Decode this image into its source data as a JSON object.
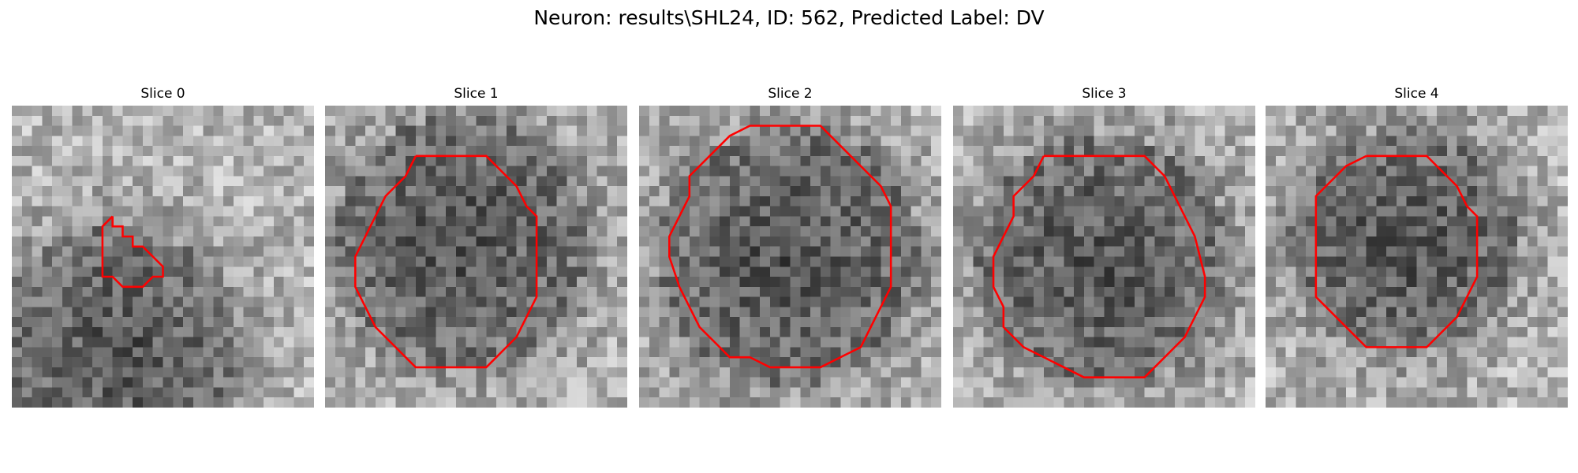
{
  "figure": {
    "title": "Neuron: results\\SHL24, ID: 562, Predicted Label: DV"
  },
  "panels": [
    {
      "title": "Slice 0",
      "seed": 11,
      "contour": [
        [
          10,
          11
        ],
        [
          10,
          12
        ],
        [
          11,
          12
        ],
        [
          11,
          13
        ],
        [
          12,
          13
        ],
        [
          12,
          14
        ],
        [
          13,
          14
        ],
        [
          14,
          15
        ],
        [
          15,
          16
        ],
        [
          15,
          17
        ],
        [
          14,
          17
        ],
        [
          13,
          18
        ],
        [
          11,
          18
        ],
        [
          10,
          17
        ],
        [
          9,
          17
        ],
        [
          9,
          12
        ],
        [
          10,
          11
        ]
      ],
      "dark_cx": 0.35,
      "dark_cy": 0.8,
      "dark_r": 0.4
    },
    {
      "title": "Slice 1",
      "seed": 23,
      "contour": [
        [
          9,
          5
        ],
        [
          16,
          5
        ],
        [
          17,
          6
        ],
        [
          18,
          7
        ],
        [
          19,
          8
        ],
        [
          20,
          10
        ],
        [
          21,
          11
        ],
        [
          21,
          19
        ],
        [
          20,
          21
        ],
        [
          19,
          23
        ],
        [
          18,
          24
        ],
        [
          17,
          25
        ],
        [
          16,
          26
        ],
        [
          9,
          26
        ],
        [
          8,
          25
        ],
        [
          7,
          24
        ],
        [
          6,
          23
        ],
        [
          5,
          22
        ],
        [
          4,
          20
        ],
        [
          3,
          18
        ],
        [
          3,
          15
        ],
        [
          4,
          13
        ],
        [
          5,
          11
        ],
        [
          6,
          9
        ],
        [
          7,
          8
        ],
        [
          8,
          7
        ],
        [
          9,
          5
        ]
      ],
      "dark_cx": 0.45,
      "dark_cy": 0.45,
      "dark_r": 0.42
    },
    {
      "title": "Slice 2",
      "seed": 37,
      "contour": [
        [
          13,
          2
        ],
        [
          18,
          2
        ],
        [
          20,
          4
        ],
        [
          22,
          6
        ],
        [
          24,
          8
        ],
        [
          25,
          10
        ],
        [
          25,
          18
        ],
        [
          24,
          20
        ],
        [
          23,
          22
        ],
        [
          22,
          24
        ],
        [
          20,
          25
        ],
        [
          18,
          26
        ],
        [
          13,
          26
        ],
        [
          11,
          25
        ],
        [
          9,
          25
        ],
        [
          8,
          24
        ],
        [
          6,
          22
        ],
        [
          5,
          20
        ],
        [
          4,
          18
        ],
        [
          3,
          15
        ],
        [
          3,
          13
        ],
        [
          4,
          11
        ],
        [
          5,
          9
        ],
        [
          5,
          7
        ],
        [
          7,
          5
        ],
        [
          9,
          3
        ],
        [
          11,
          2
        ],
        [
          13,
          2
        ]
      ],
      "dark_cx": 0.5,
      "dark_cy": 0.5,
      "dark_r": 0.44
    },
    {
      "title": "Slice 3",
      "seed": 51,
      "contour": [
        [
          9,
          5
        ],
        [
          19,
          5
        ],
        [
          20,
          6
        ],
        [
          21,
          7
        ],
        [
          22,
          9
        ],
        [
          23,
          11
        ],
        [
          24,
          13
        ],
        [
          25,
          17
        ],
        [
          25,
          19
        ],
        [
          24,
          21
        ],
        [
          23,
          23
        ],
        [
          22,
          24
        ],
        [
          21,
          25
        ],
        [
          19,
          27
        ],
        [
          13,
          27
        ],
        [
          11,
          26
        ],
        [
          9,
          25
        ],
        [
          7,
          24
        ],
        [
          6,
          23
        ],
        [
          5,
          22
        ],
        [
          5,
          20
        ],
        [
          4,
          18
        ],
        [
          4,
          15
        ],
        [
          5,
          13
        ],
        [
          6,
          11
        ],
        [
          6,
          9
        ],
        [
          7,
          8
        ],
        [
          8,
          7
        ],
        [
          9,
          5
        ]
      ],
      "dark_cx": 0.5,
      "dark_cy": 0.52,
      "dark_r": 0.42
    },
    {
      "title": "Slice 4",
      "seed": 67,
      "contour": [
        [
          10,
          5
        ],
        [
          16,
          5
        ],
        [
          17,
          6
        ],
        [
          18,
          7
        ],
        [
          19,
          8
        ],
        [
          20,
          10
        ],
        [
          21,
          11
        ],
        [
          21,
          17
        ],
        [
          20,
          19
        ],
        [
          19,
          21
        ],
        [
          18,
          22
        ],
        [
          17,
          23
        ],
        [
          16,
          24
        ],
        [
          10,
          24
        ],
        [
          9,
          23
        ],
        [
          8,
          22
        ],
        [
          7,
          21
        ],
        [
          6,
          20
        ],
        [
          5,
          19
        ],
        [
          5,
          9
        ],
        [
          6,
          8
        ],
        [
          7,
          7
        ],
        [
          8,
          6
        ],
        [
          10,
          5
        ]
      ],
      "dark_cx": 0.45,
      "dark_cy": 0.45,
      "dark_r": 0.38
    }
  ],
  "style": {
    "contour_color": "#ff0000"
  }
}
